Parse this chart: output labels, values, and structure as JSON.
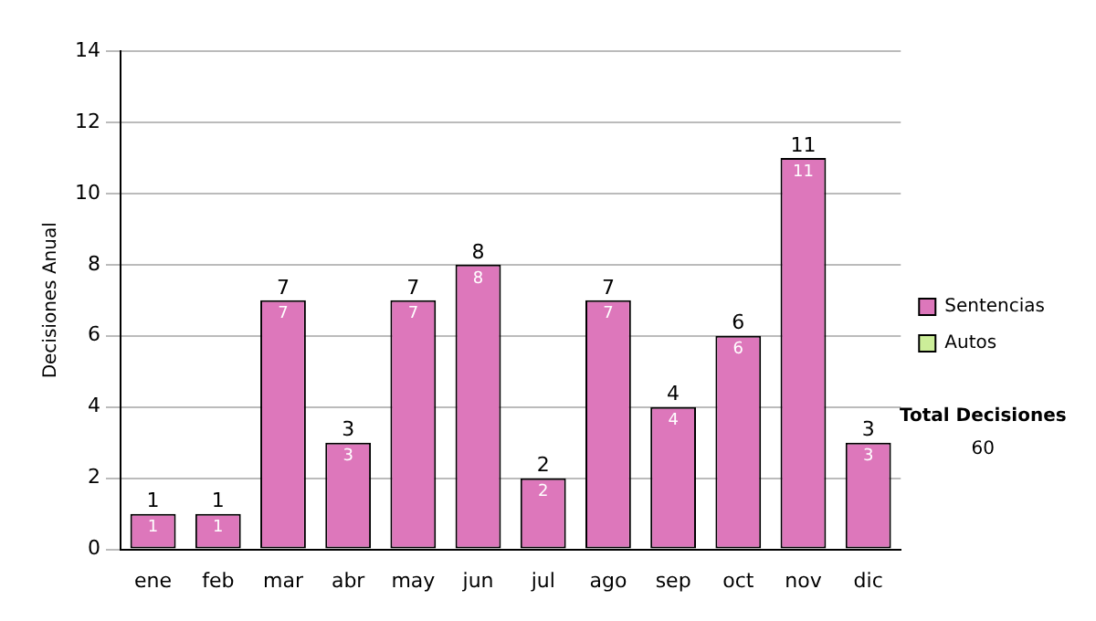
{
  "chart_data": {
    "type": "bar",
    "ylabel": "Decisiones Anual",
    "categories": [
      "ene",
      "feb",
      "mar",
      "abr",
      "may",
      "jun",
      "jul",
      "ago",
      "sep",
      "oct",
      "nov",
      "dic"
    ],
    "series": [
      {
        "name": "Sentencias",
        "color": "#dd77bb",
        "values": [
          1,
          1,
          7,
          3,
          7,
          8,
          2,
          7,
          4,
          6,
          11,
          3
        ],
        "value_labels": [
          "1",
          "1",
          "7",
          "3",
          "7",
          "8",
          "2",
          "7",
          "4",
          "6",
          "11",
          "3"
        ]
      },
      {
        "name": "Autos",
        "color": "#ccee99",
        "values": [
          0,
          0,
          0,
          0,
          0,
          0,
          0,
          0,
          0,
          0,
          0,
          0
        ]
      }
    ],
    "stacked": true,
    "totals": [
      "1",
      "1",
      "7",
      "3",
      "7",
      "8",
      "2",
      "7",
      "4",
      "6",
      "11",
      "3"
    ],
    "ylim": [
      0,
      14
    ],
    "yticks": [
      0,
      2,
      4,
      6,
      8,
      10,
      12,
      14
    ],
    "grid": "y",
    "legend": "right",
    "annotations": [
      "Total Decisiones",
      "60"
    ]
  }
}
